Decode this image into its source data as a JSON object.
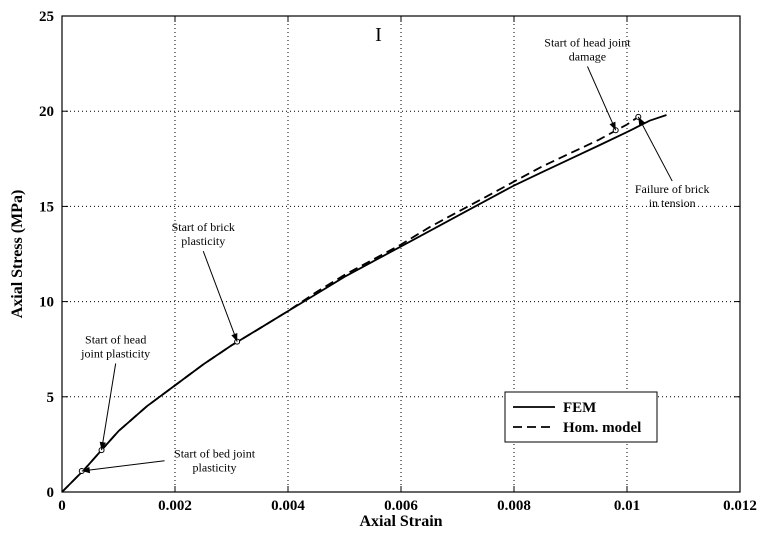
{
  "chart_data": {
    "type": "line",
    "xlabel": "Axial Strain",
    "ylabel": "Axial Stress (MPa)",
    "xlim": [
      0,
      0.012
    ],
    "ylim": [
      0,
      25
    ],
    "xticks": [
      0,
      0.002,
      0.004,
      0.006,
      0.008,
      0.01,
      0.012
    ],
    "xtick_labels": [
      "0",
      "0.002",
      "0.004",
      "0.006",
      "0.008",
      "0.01",
      "0.012"
    ],
    "yticks": [
      0,
      5,
      10,
      15,
      20,
      25
    ],
    "ytick_labels": [
      "0",
      "5",
      "10",
      "15",
      "20",
      "25"
    ],
    "grid": true,
    "legend": "bottom-right",
    "series": [
      {
        "name": "FEM",
        "style": "solid",
        "color": "#000000",
        "x": [
          0,
          0.0002,
          0.0004,
          0.0007,
          0.001,
          0.0015,
          0.002,
          0.0025,
          0.003,
          0.0035,
          0.004,
          0.0045,
          0.005,
          0.0055,
          0.006,
          0.0065,
          0.007,
          0.0075,
          0.008,
          0.0085,
          0.009,
          0.0095,
          0.01,
          0.0104,
          0.0107
        ],
        "y": [
          0,
          0.6,
          1.2,
          2.2,
          3.2,
          4.5,
          5.6,
          6.7,
          7.7,
          8.6,
          9.5,
          10.4,
          11.3,
          12.1,
          12.9,
          13.7,
          14.5,
          15.3,
          16.1,
          16.8,
          17.5,
          18.2,
          18.9,
          19.5,
          19.8
        ]
      },
      {
        "name": "Hom. model",
        "style": "dashed",
        "color": "#000000",
        "x": [
          0,
          0.0002,
          0.0004,
          0.0007,
          0.001,
          0.0015,
          0.002,
          0.0025,
          0.003,
          0.0035,
          0.004,
          0.0045,
          0.005,
          0.0055,
          0.006,
          0.0065,
          0.007,
          0.0075,
          0.008,
          0.0085,
          0.009,
          0.0095,
          0.01,
          0.0102
        ],
        "y": [
          0,
          0.6,
          1.2,
          2.2,
          3.2,
          4.5,
          5.6,
          6.7,
          7.7,
          8.6,
          9.5,
          10.5,
          11.4,
          12.2,
          13.0,
          13.9,
          14.7,
          15.5,
          16.3,
          17.1,
          17.8,
          18.5,
          19.3,
          19.7
        ]
      }
    ],
    "markers": [
      {
        "x": 0.00035,
        "y": 1.1
      },
      {
        "x": 0.0007,
        "y": 2.2
      },
      {
        "x": 0.0031,
        "y": 7.9
      },
      {
        "x": 0.0098,
        "y": 19.0
      },
      {
        "x": 0.0102,
        "y": 19.7
      }
    ],
    "annotations": [
      {
        "lines": [
          "Start of bed joint",
          "plasticity"
        ],
        "x": 0.0027,
        "y": 1.8,
        "target": [
          0.00035,
          1.1
        ]
      },
      {
        "lines": [
          "Start of head",
          "joint plasticity"
        ],
        "x": 0.00095,
        "y": 7.8,
        "target": [
          0.0007,
          2.2
        ]
      },
      {
        "lines": [
          "Start of brick",
          "plasticity"
        ],
        "x": 0.0025,
        "y": 13.7,
        "target": [
          0.0031,
          7.9
        ]
      },
      {
        "lines": [
          "Start of head joint",
          "damage"
        ],
        "x": 0.0093,
        "y": 23.4,
        "target": [
          0.0098,
          19.0
        ]
      },
      {
        "lines": [
          "Failure of brick",
          "in tension"
        ],
        "x": 0.0108,
        "y": 15.7,
        "target": [
          0.0102,
          19.7
        ]
      }
    ],
    "stray_label": "I"
  }
}
